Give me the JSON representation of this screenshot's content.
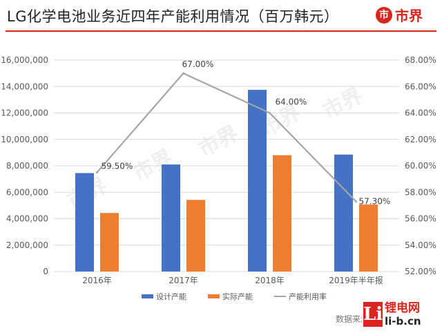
{
  "title": "LG化学电池业务近四年产能利用情况（百万韩元）",
  "brand": {
    "symbol": "市",
    "name": "市界"
  },
  "watermark": "市界",
  "source_text": "数据来源：LG化学官网",
  "corner_logo": {
    "mark": "Li",
    "name": "锂电网",
    "url": "li-b.cn"
  },
  "colors": {
    "design": "#4472c4",
    "actual": "#ed7d31",
    "rate": "#a5a5a5",
    "brand": "#d9251d"
  },
  "chart_data": {
    "type": "bar",
    "categories": [
      "2016年",
      "2017年",
      "2018年",
      "2019年半年报"
    ],
    "series": [
      {
        "name": "设计产能",
        "type": "bar",
        "axis": "left",
        "values": [
          7450000,
          8100000,
          13750000,
          8850000
        ]
      },
      {
        "name": "实际产能",
        "type": "bar",
        "axis": "left",
        "values": [
          4430000,
          5420000,
          8800000,
          5070000
        ]
      },
      {
        "name": "产能利用率",
        "type": "line",
        "axis": "right",
        "values": [
          59.5,
          67.0,
          64.0,
          57.3
        ],
        "labels": [
          "59.50%",
          "67.00%",
          "64.00%",
          "57.30%"
        ]
      }
    ],
    "ylim_left": [
      0,
      16000000
    ],
    "yticks_left": [
      "0",
      "2,000,000",
      "4,000,000",
      "6,000,000",
      "8,000,000",
      "10,000,000",
      "12,000,000",
      "14,000,000",
      "16,000,000"
    ],
    "ylim_right": [
      52,
      68
    ],
    "yticks_right": [
      "52.00%",
      "54.00%",
      "56.00%",
      "58.00%",
      "60.00%",
      "62.00%",
      "64.00%",
      "66.00%",
      "68.00%"
    ],
    "grid": true,
    "legend_position": "bottom"
  }
}
